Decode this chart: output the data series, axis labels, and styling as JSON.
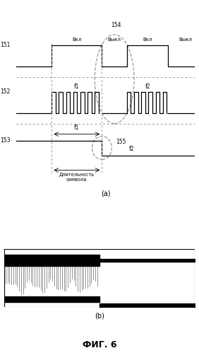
{
  "fig_width": 2.82,
  "fig_height": 4.99,
  "dpi": 100,
  "bg_color": "#ffffff",
  "panel_a_label": "(a)",
  "panel_b_label": "(b)",
  "fig_label": "ФИГ. 6",
  "label_151": "151",
  "label_152": "152",
  "label_153": "153",
  "label_154": "154",
  "label_155": "155",
  "label_f1_top": "f1",
  "label_f2_top": "f2",
  "label_f1_bottom": "f1",
  "label_f2_bottom": "f2",
  "label_vkl1": "Вкл",
  "label_vikl1": "Выкл",
  "label_vkl2": "Вкл",
  "label_vikl2": "Выкл",
  "label_duration": "Длительность\nсимвола",
  "dash_color": "#999999",
  "line_color": "#000000"
}
